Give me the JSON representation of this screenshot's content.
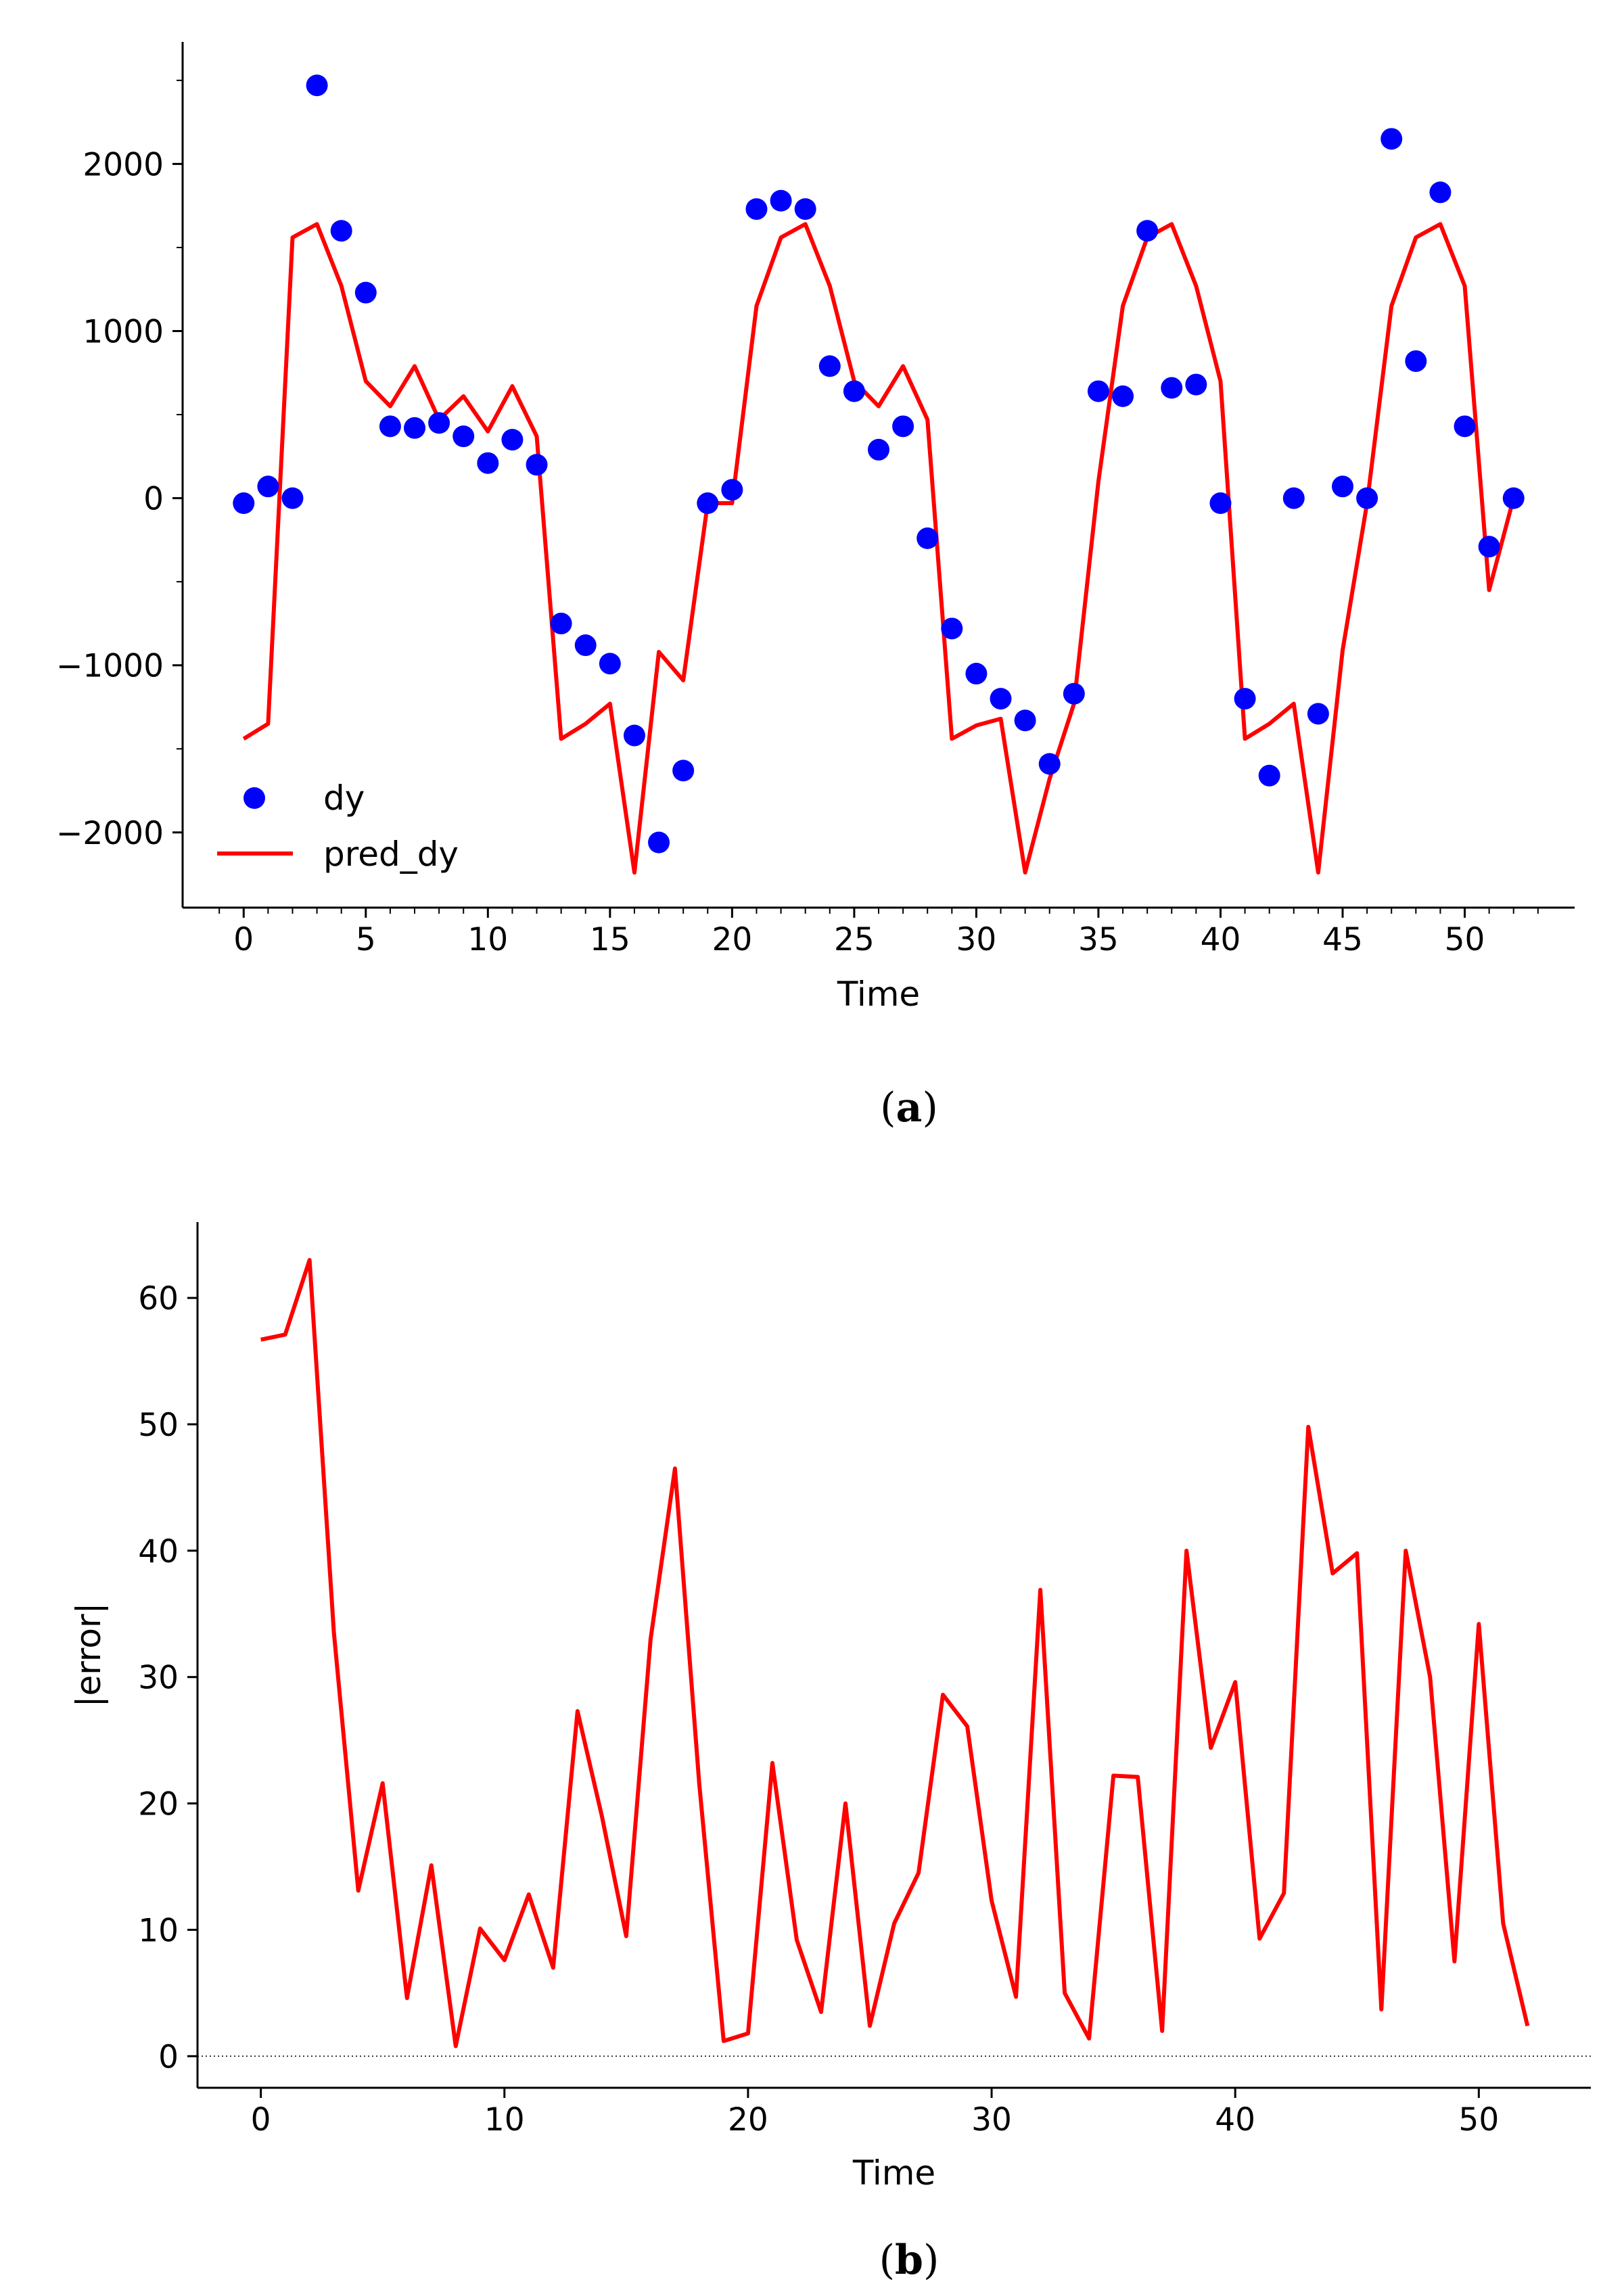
{
  "chart_data": [
    {
      "type": "line+scatter",
      "panel_label": "a",
      "caption_open": "(",
      "caption_close": ")",
      "xlabel": "Time",
      "ylabel": "",
      "xlim": [
        -2.5,
        54.5
      ],
      "ylim": [
        -2450,
        2730
      ],
      "xticks": [
        0,
        5,
        10,
        15,
        20,
        25,
        30,
        35,
        40,
        45,
        50
      ],
      "xticks_minor": [
        -1,
        1,
        2,
        3,
        4,
        6,
        7,
        8,
        9,
        11,
        12,
        13,
        14,
        16,
        17,
        18,
        19,
        21,
        22,
        23,
        24,
        26,
        27,
        28,
        29,
        31,
        32,
        33,
        34,
        36,
        37,
        38,
        39,
        41,
        42,
        43,
        44,
        46,
        47,
        48,
        49,
        51,
        52,
        53
      ],
      "yticks": [
        -2000,
        -1000,
        0,
        1000,
        2000
      ],
      "ytick_labels": [
        "−2000",
        "−1000",
        "0",
        "1000",
        "2000"
      ],
      "yticks_minor": [
        -2500,
        -1500,
        -500,
        500,
        1500,
        2500
      ],
      "legend": {
        "position": "lower-left",
        "entries": [
          "dy",
          "pred_dy"
        ]
      },
      "series": [
        {
          "name": "dy",
          "kind": "scatter",
          "color": "#0000ff",
          "x": [
            0,
            1,
            2,
            3,
            4,
            5,
            6,
            7,
            8,
            9,
            10,
            11,
            12,
            13,
            14,
            15,
            16,
            17,
            18,
            19,
            20,
            21,
            22,
            23,
            24,
            25,
            26,
            27,
            28,
            29,
            30,
            31,
            32,
            33,
            34,
            35,
            36,
            37,
            38,
            39,
            40,
            41,
            42,
            43,
            44,
            45,
            46,
            47,
            48,
            49,
            50,
            51,
            52
          ],
          "values": [
            -30,
            70,
            0,
            2470,
            1600,
            1230,
            430,
            420,
            450,
            370,
            210,
            350,
            200,
            -750,
            -880,
            -990,
            -1420,
            -2060,
            -1630,
            -30,
            50,
            1730,
            1780,
            1730,
            790,
            640,
            290,
            430,
            -240,
            -780,
            -1050,
            -1200,
            -1330,
            -1590,
            -1170,
            640,
            610,
            1600,
            660,
            680,
            -30,
            -1200,
            -1660,
            0,
            -1290,
            70,
            0,
            2150,
            820,
            1830,
            430,
            -290,
            0
          ]
        },
        {
          "name": "pred_dy",
          "kind": "line",
          "color": "#ff0000",
          "x": [
            0,
            1,
            2,
            3,
            4,
            5,
            6,
            7,
            8,
            9,
            10,
            11,
            12,
            13,
            14,
            15,
            16,
            17,
            18,
            19,
            20,
            21,
            22,
            23,
            24,
            25,
            26,
            27,
            28,
            29,
            30,
            31,
            32,
            33,
            34,
            35,
            36,
            37,
            38,
            39,
            40,
            41,
            42,
            43,
            44,
            45,
            46,
            47,
            48,
            49,
            50,
            51,
            52
          ],
          "values": [
            -1440,
            -1350,
            1560,
            1640,
            1270,
            700,
            550,
            790,
            470,
            610,
            400,
            670,
            370,
            -1440,
            -1350,
            -1230,
            -2240,
            -920,
            -1090,
            -30,
            -30,
            1150,
            1560,
            1640,
            1270,
            700,
            550,
            790,
            470,
            -1440,
            -1360,
            -1320,
            -2240,
            -1680,
            -1230,
            100,
            1150,
            1560,
            1640,
            1270,
            700,
            -1440,
            -1350,
            -1230,
            -2240,
            -910,
            -30,
            1150,
            1560,
            1640,
            1270,
            -550,
            0
          ]
        }
      ]
    },
    {
      "type": "line",
      "panel_label": "b",
      "caption_open": "(",
      "caption_close": ")",
      "xlabel": "Time",
      "ylabel": "|error|",
      "xlim": [
        -2.6,
        54.6
      ],
      "ylim": [
        -2.5,
        66
      ],
      "xticks": [
        0,
        10,
        20,
        30,
        40,
        50
      ],
      "yticks": [
        0,
        10,
        20,
        30,
        40,
        50,
        60
      ],
      "reference_line": {
        "y": 0,
        "style": "dotted"
      },
      "series": [
        {
          "name": "|error|",
          "kind": "line",
          "color": "#ff0000",
          "x": [
            0,
            1,
            2,
            3,
            4,
            5,
            6,
            7,
            8,
            9,
            10,
            11,
            12,
            13,
            14,
            15,
            16,
            17,
            18,
            19,
            20,
            21,
            22,
            23,
            24,
            25,
            26,
            27,
            28,
            29,
            30,
            31,
            32,
            33,
            34,
            35,
            36,
            37,
            38,
            39,
            40,
            41,
            42,
            43,
            44,
            45,
            46,
            47,
            48,
            49,
            50,
            51,
            52
          ],
          "values": [
            56.7,
            57.1,
            63,
            33.5,
            13.1,
            21.6,
            4.6,
            15.1,
            0.8,
            10.1,
            7.6,
            12.8,
            7,
            27.3,
            19,
            9.5,
            33,
            46.5,
            21.5,
            1.2,
            1.8,
            23.2,
            9.2,
            3.5,
            20,
            2.4,
            10.5,
            14.5,
            28.6,
            26.1,
            12.3,
            4.7,
            36.9,
            5,
            1.4,
            22.2,
            22.1,
            2,
            40,
            24.4,
            29.6,
            9.3,
            12.9,
            49.8,
            38.2,
            39.8,
            3.7,
            40,
            30,
            7.5,
            34.2,
            10.5,
            2.4
          ]
        }
      ]
    }
  ]
}
